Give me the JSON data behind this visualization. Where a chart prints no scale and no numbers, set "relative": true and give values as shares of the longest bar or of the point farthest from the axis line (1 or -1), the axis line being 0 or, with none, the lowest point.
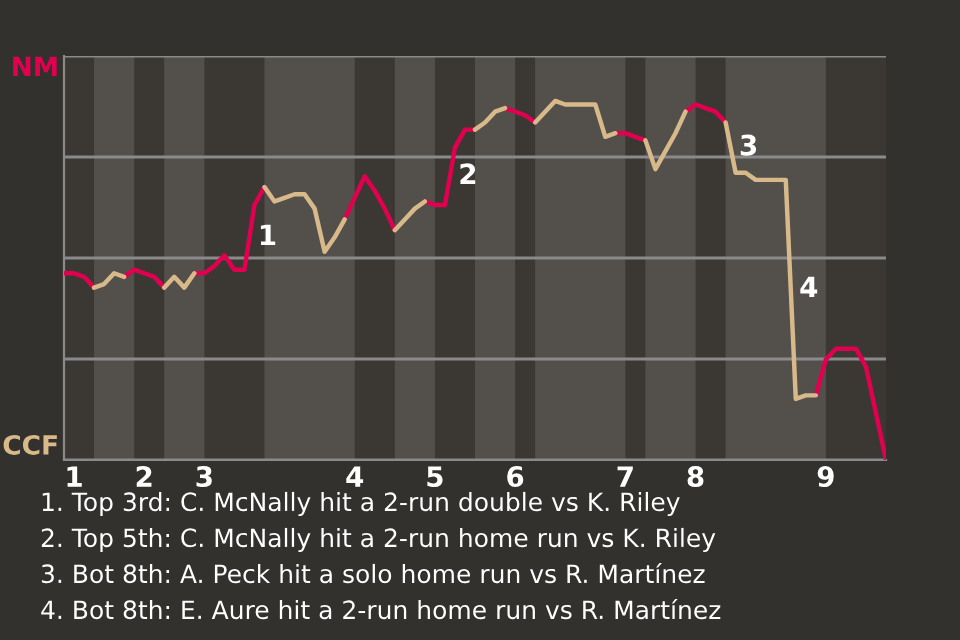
{
  "chart_data": {
    "type": "line",
    "relative": true,
    "categories": [
      null,
      "1",
      null,
      null,
      null,
      null,
      null,
      null,
      "2",
      null,
      null,
      null,
      null,
      null,
      "3",
      null,
      null,
      null,
      null,
      null,
      null,
      null,
      null,
      null,
      null,
      null,
      null,
      null,
      null,
      "4",
      null,
      null,
      null,
      null,
      null,
      null,
      null,
      "5",
      null,
      null,
      null,
      null,
      null,
      null,
      null,
      "6",
      null,
      null,
      null,
      null,
      null,
      null,
      null,
      null,
      null,
      null,
      "7",
      null,
      null,
      null,
      null,
      null,
      null,
      "8",
      null,
      null,
      null,
      null,
      null,
      null,
      null,
      null,
      null,
      null,
      null,
      null,
      "9",
      null,
      null,
      null,
      null,
      null,
      null
    ],
    "series": [
      {
        "color": "#e0004f",
        "values": [
          0.52,
          0.52,
          0.51,
          0.48,
          null,
          null,
          0.51,
          0.53,
          0.52,
          0.51,
          0.48,
          null,
          null,
          0.52,
          0.52,
          0.54,
          0.57,
          0.53,
          0.53,
          0.71,
          0.76,
          null,
          null,
          null,
          null,
          null,
          null,
          null,
          0.67,
          0.73,
          0.79,
          0.75,
          0.7,
          0.64,
          null,
          null,
          0.72,
          0.71,
          0.71,
          0.87,
          0.92,
          0.92,
          null,
          null,
          0.98,
          0.97,
          0.96,
          0.94,
          null,
          null,
          null,
          null,
          null,
          null,
          null,
          0.91,
          0.91,
          0.9,
          0.89,
          null,
          null,
          null,
          0.97,
          0.99,
          0.98,
          0.97,
          0.94,
          null,
          null,
          null,
          null,
          null,
          null,
          null,
          null,
          0.18,
          0.28,
          0.31,
          0.31,
          0.31,
          0.26,
          0.13,
          0
        ]
      },
      {
        "color": "#d8b98a",
        "values": [
          null,
          null,
          null,
          0.48,
          0.49,
          0.52,
          0.51,
          null,
          null,
          null,
          0.48,
          0.51,
          0.48,
          0.52,
          null,
          null,
          null,
          null,
          null,
          null,
          0.76,
          0.72,
          0.73,
          0.74,
          0.74,
          0.7,
          0.58,
          0.62,
          0.67,
          null,
          null,
          null,
          null,
          0.64,
          0.67,
          0.7,
          0.72,
          null,
          null,
          null,
          null,
          0.92,
          0.94,
          0.97,
          0.98,
          null,
          null,
          0.94,
          0.97,
          1,
          0.99,
          0.99,
          0.99,
          0.99,
          0.9,
          0.91,
          null,
          null,
          0.89,
          0.81,
          0.86,
          0.91,
          0.97,
          null,
          null,
          null,
          0.94,
          0.8,
          0.8,
          0.78,
          0.78,
          0.78,
          0.78,
          0.17,
          0.18,
          0.18,
          null,
          null,
          null,
          null,
          null,
          null,
          null
        ]
      }
    ],
    "grid": "y",
    "annotations": [
      "NM",
      "CCF",
      "1",
      "2",
      "3",
      "4",
      "1. Top 3rd: C. McNally hit a 2-run double vs K. Riley",
      "2. Top 5th: C. McNally hit a 2-run home run vs K. Riley",
      "3. Bot 8th: A. Peck hit a solo home run vs R. Martínez",
      "4. Bot 8th: E. Aure hit a 2-run home run vs R. Martínez"
    ]
  }
}
